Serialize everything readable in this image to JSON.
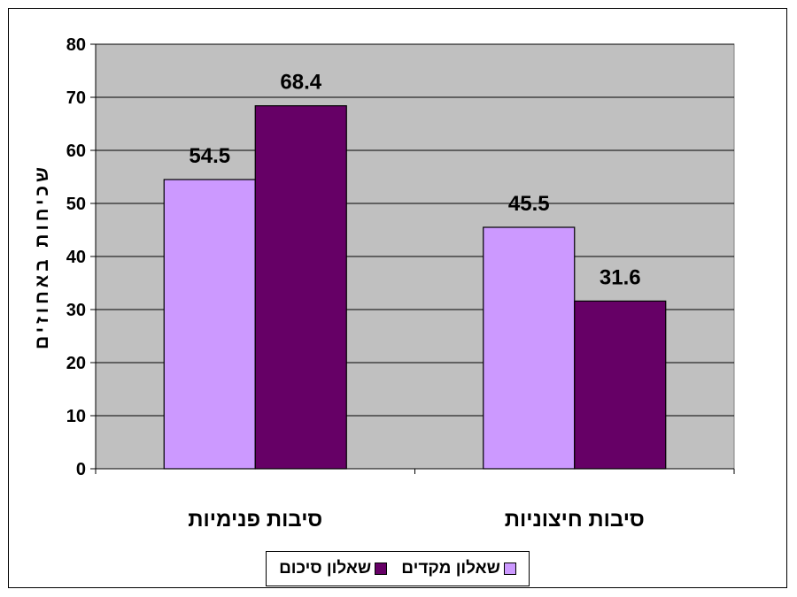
{
  "chart_data": {
    "type": "bar",
    "categories": [
      "סיבות פנימיות",
      "סיבות חיצוניות"
    ],
    "series": [
      {
        "name": "שאלון מקדים",
        "values": [
          54.5,
          45.5
        ],
        "color": "#cc99ff"
      },
      {
        "name": "שאלון סיכום",
        "values": [
          68.4,
          31.6
        ],
        "color": "#660066"
      }
    ],
    "ylabel": "שכיחות באחוזים",
    "ylim": [
      0,
      80
    ],
    "yticks": [
      "0",
      "10",
      "20",
      "30",
      "40",
      "50",
      "60",
      "70",
      "80"
    ],
    "data_labels": [
      "54.5",
      "68.4",
      "45.5",
      "31.6"
    ],
    "grid": true,
    "plot_background": "#c0c0c0",
    "legend_position": "bottom"
  }
}
